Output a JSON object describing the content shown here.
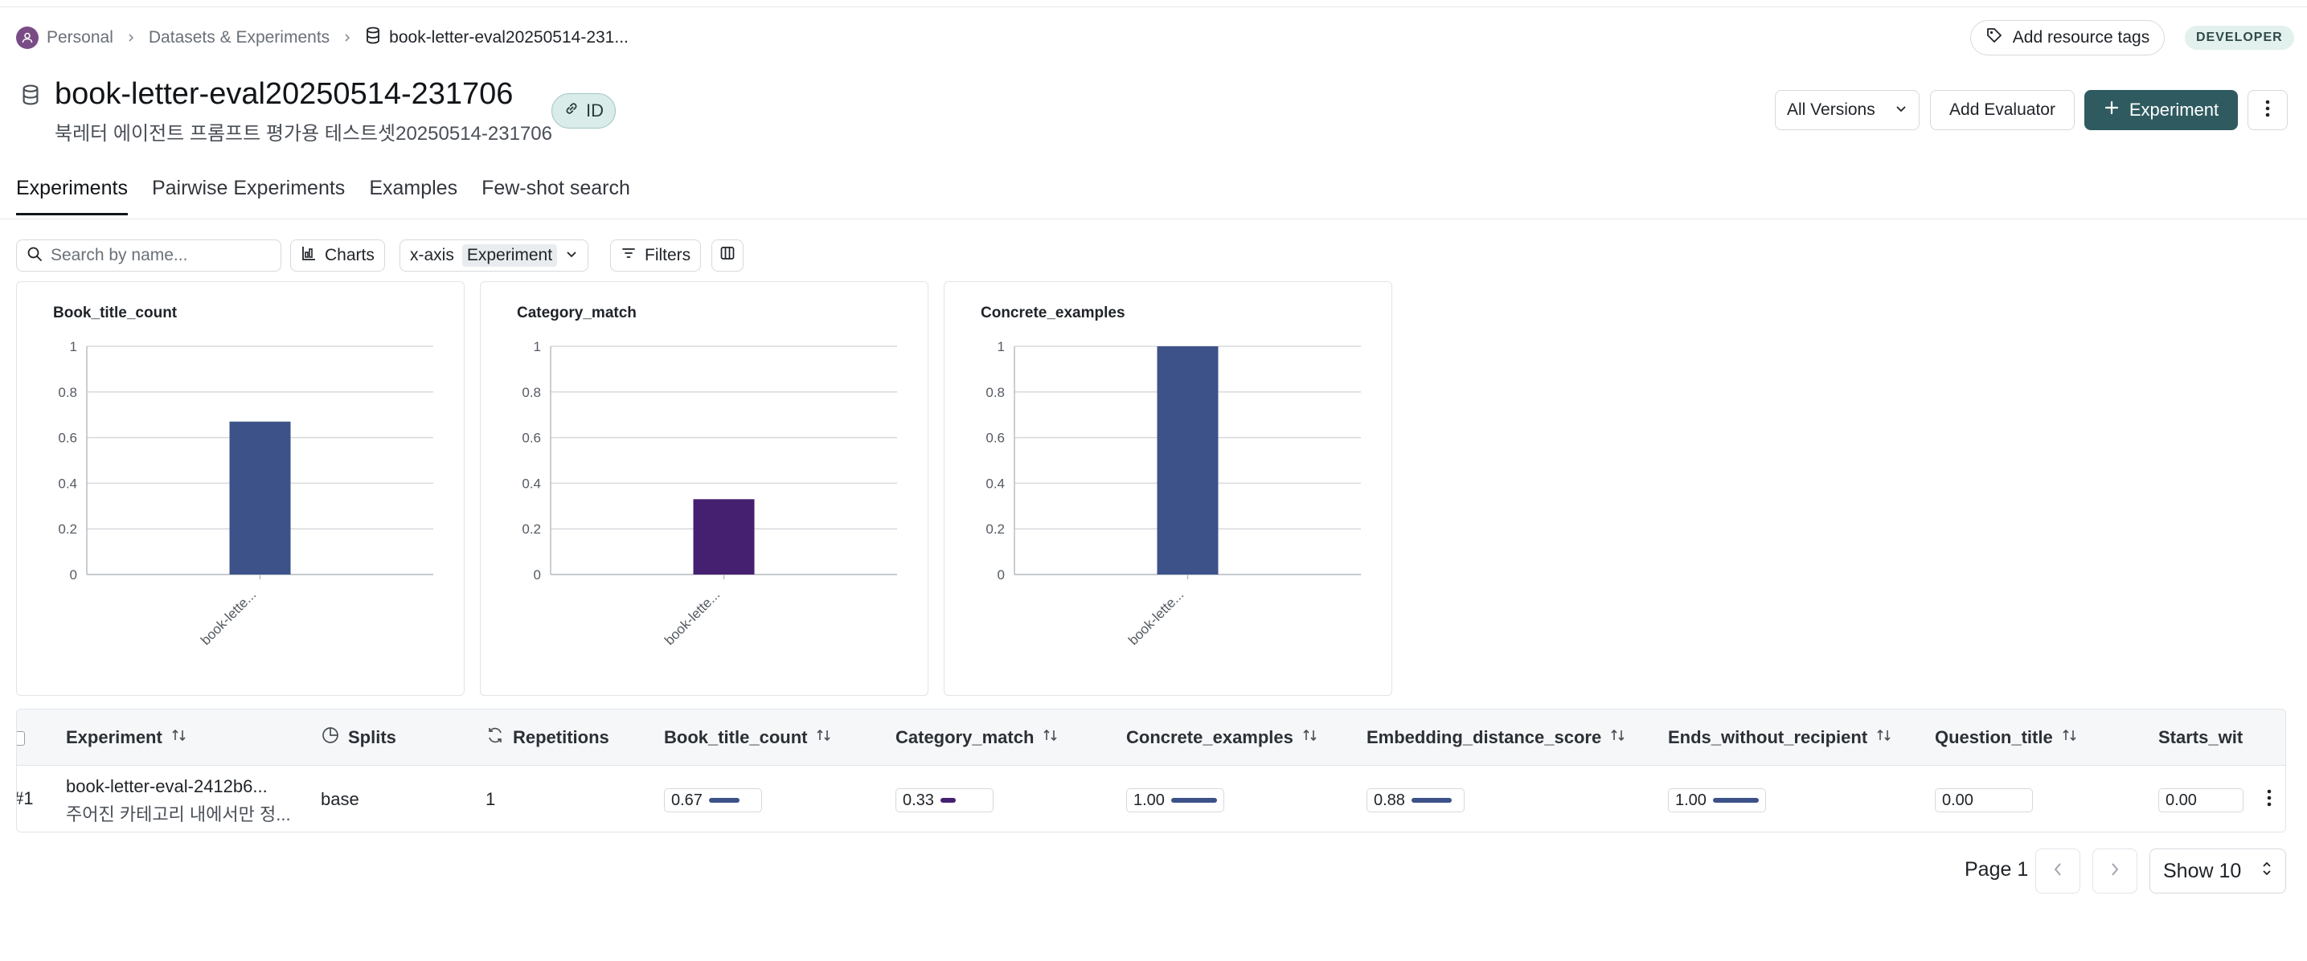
{
  "breadcrumb": {
    "items": [
      {
        "label": "Personal"
      },
      {
        "label": "Datasets & Experiments"
      },
      {
        "label": "book-letter-eval20250514-231..."
      }
    ]
  },
  "header": {
    "add_tags_label": "Add resource tags",
    "role_badge": "DEVELOPER",
    "title": "book-letter-eval20250514-231706",
    "subtitle": "북레터 에이전트 프롬프트 평가용 테스트셋20250514-231706",
    "id_chip": "ID",
    "versions_label": "All Versions",
    "add_evaluator_label": "Add Evaluator",
    "experiment_label": "Experiment"
  },
  "tabs": [
    {
      "label": "Experiments",
      "active": true
    },
    {
      "label": "Pairwise Experiments",
      "active": false
    },
    {
      "label": "Examples",
      "active": false
    },
    {
      "label": "Few-shot search",
      "active": false
    }
  ],
  "toolbar": {
    "search_placeholder": "Search by name...",
    "charts_label": "Charts",
    "xaxis_label": "x-axis",
    "xaxis_value": "Experiment",
    "filters_label": "Filters"
  },
  "chart_data": [
    {
      "type": "bar",
      "title": "Book_title_count",
      "categories": [
        "book-lette..."
      ],
      "values": [
        0.67
      ],
      "ylim": [
        0,
        1
      ],
      "yticks": [
        "0",
        "0.2",
        "0.4",
        "0.6",
        "0.8",
        "1"
      ],
      "color": "#3d5289",
      "grid": true
    },
    {
      "type": "bar",
      "title": "Category_match",
      "categories": [
        "book-lette..."
      ],
      "values": [
        0.33
      ],
      "ylim": [
        0,
        1
      ],
      "yticks": [
        "0",
        "0.2",
        "0.4",
        "0.6",
        "0.8",
        "1"
      ],
      "color": "#452070",
      "grid": true
    },
    {
      "type": "bar",
      "title": "Concrete_examples",
      "categories": [
        "book-lette..."
      ],
      "values": [
        1.0
      ],
      "ylim": [
        0,
        1
      ],
      "yticks": [
        "0",
        "0.2",
        "0.4",
        "0.6",
        "0.8",
        "1"
      ],
      "color": "#3d5289",
      "grid": true
    }
  ],
  "table": {
    "columns": [
      {
        "label": "Experiment"
      },
      {
        "label": "Splits"
      },
      {
        "label": "Repetitions"
      },
      {
        "label": "Book_title_count"
      },
      {
        "label": "Category_match"
      },
      {
        "label": "Concrete_examples"
      },
      {
        "label": "Embedding_distance_score"
      },
      {
        "label": "Ends_without_recipient"
      },
      {
        "label": "Question_title"
      },
      {
        "label": "Starts_wit"
      }
    ],
    "rows": [
      {
        "index": "#1",
        "name": "book-letter-eval-2412b6...",
        "description": "주어진 카테고리 내에서만 정...",
        "split": "base",
        "repetitions": "1",
        "scores": [
          {
            "text": "0.67",
            "value": 0.67,
            "color": "#3d5289"
          },
          {
            "text": "0.33",
            "value": 0.33,
            "color": "#452070"
          },
          {
            "text": "1.00",
            "value": 1.0,
            "color": "#3d5289"
          },
          {
            "text": "0.88",
            "value": 0.88,
            "color": "#3d5289"
          },
          {
            "text": "1.00",
            "value": 1.0,
            "color": "#3d5289"
          },
          {
            "text": "0.00",
            "value": 0.0,
            "color": "#3d5289"
          },
          {
            "text": "0.00",
            "value": 0.0,
            "color": "#3d5289"
          }
        ]
      }
    ]
  },
  "pagination": {
    "page_label": "Page 1",
    "show_label": "Show 10"
  }
}
